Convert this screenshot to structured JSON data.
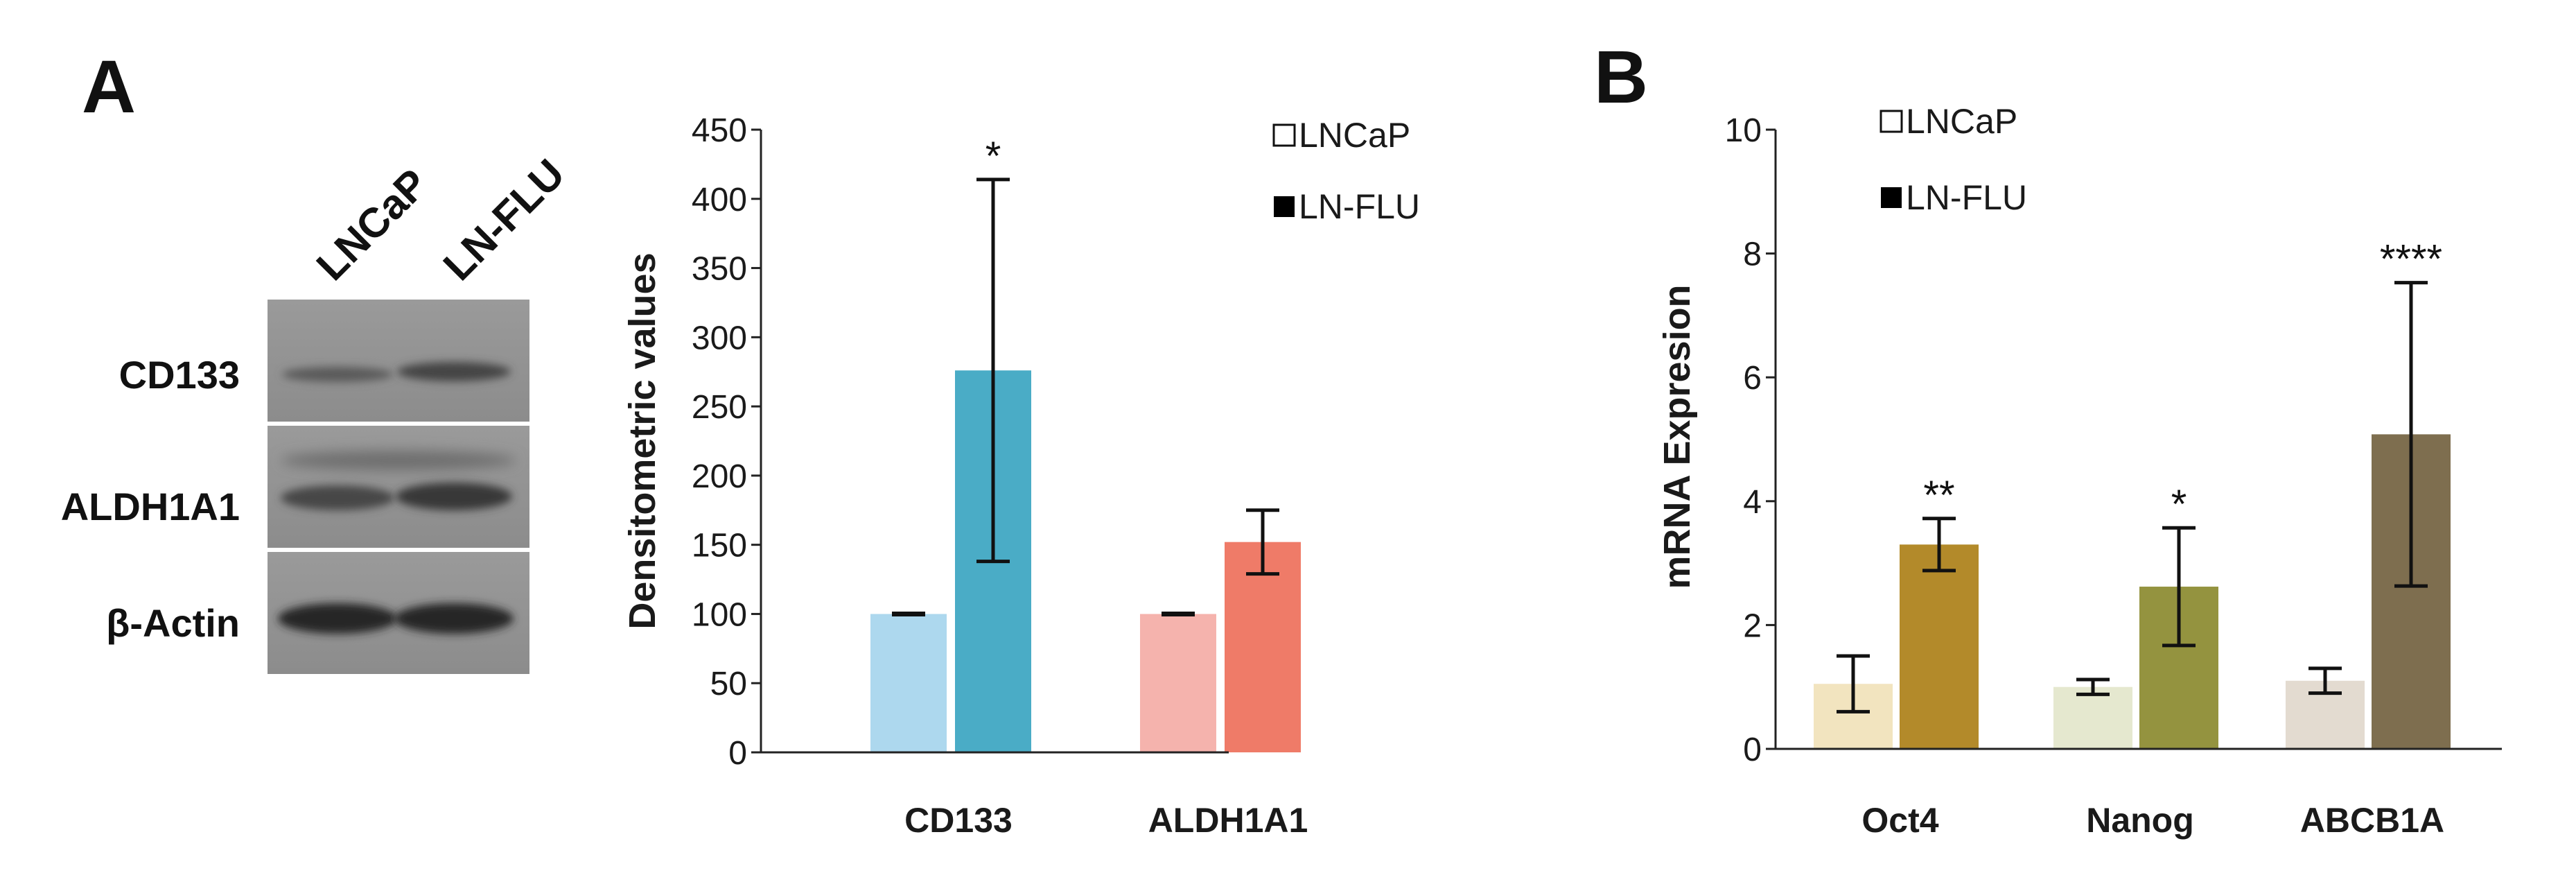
{
  "panel_a": {
    "letter": "A",
    "blot": {
      "lanes": [
        "LNCaP",
        "LN-FLU"
      ],
      "rows": [
        "CD133",
        "ALDH1A1",
        "β-Actin"
      ]
    }
  },
  "panel_b": {
    "letter": "B"
  },
  "chart_data": [
    {
      "type": "bar",
      "title": "",
      "xlabel": "",
      "ylabel": "Densitometric values",
      "ylim": [
        0,
        450
      ],
      "yticks": [
        0,
        50,
        100,
        150,
        200,
        250,
        300,
        350,
        400,
        450
      ],
      "categories": [
        "CD133",
        "ALDH1A1"
      ],
      "legend": {
        "position": "top-right",
        "entries": [
          "LNCaP",
          "LN-FLU"
        ],
        "swatch_colors": [
          "#ffffff",
          "#000000"
        ]
      },
      "series": [
        {
          "name": "LNCaP",
          "values": [
            100,
            100
          ],
          "errors": [
            0.5,
            0.5
          ],
          "colors": [
            "#add8ee",
            "#f5b3ad"
          ]
        },
        {
          "name": "LN-FLU",
          "values": [
            276,
            152
          ],
          "errors": [
            138,
            23
          ],
          "colors": [
            "#4aacc6",
            "#ef7b68"
          ]
        }
      ],
      "annotations": [
        {
          "category": "CD133",
          "series": "LN-FLU",
          "text": "*"
        }
      ]
    },
    {
      "type": "bar",
      "title": "",
      "xlabel": "",
      "ylabel": "mRNA Expresion",
      "ylim": [
        0,
        10
      ],
      "yticks": [
        0,
        2,
        4,
        6,
        8,
        10
      ],
      "categories": [
        "Oct4",
        "Nanog",
        "ABCB1A"
      ],
      "legend": {
        "position": "top-left",
        "entries": [
          "LNCaP",
          "LN-FLU"
        ],
        "swatch_colors": [
          "#ffffff",
          "#000000"
        ]
      },
      "series": [
        {
          "name": "LNCaP",
          "values": [
            1.05,
            1.0,
            1.1
          ],
          "errors": [
            0.45,
            0.12,
            0.2
          ],
          "colors": [
            "#f2e4bf",
            "#e5e8cf",
            "#e3dbd0"
          ]
        },
        {
          "name": "LN-FLU",
          "values": [
            3.3,
            2.62,
            5.08
          ],
          "errors": [
            0.42,
            0.95,
            2.45
          ],
          "colors": [
            "#b38a2a",
            "#94933f",
            "#7e6e4f"
          ]
        }
      ],
      "annotations": [
        {
          "category": "Oct4",
          "series": "LN-FLU",
          "text": "**"
        },
        {
          "category": "Nanog",
          "series": "LN-FLU",
          "text": "*"
        },
        {
          "category": "ABCB1A",
          "series": "LN-FLU",
          "text": "****"
        }
      ]
    }
  ]
}
